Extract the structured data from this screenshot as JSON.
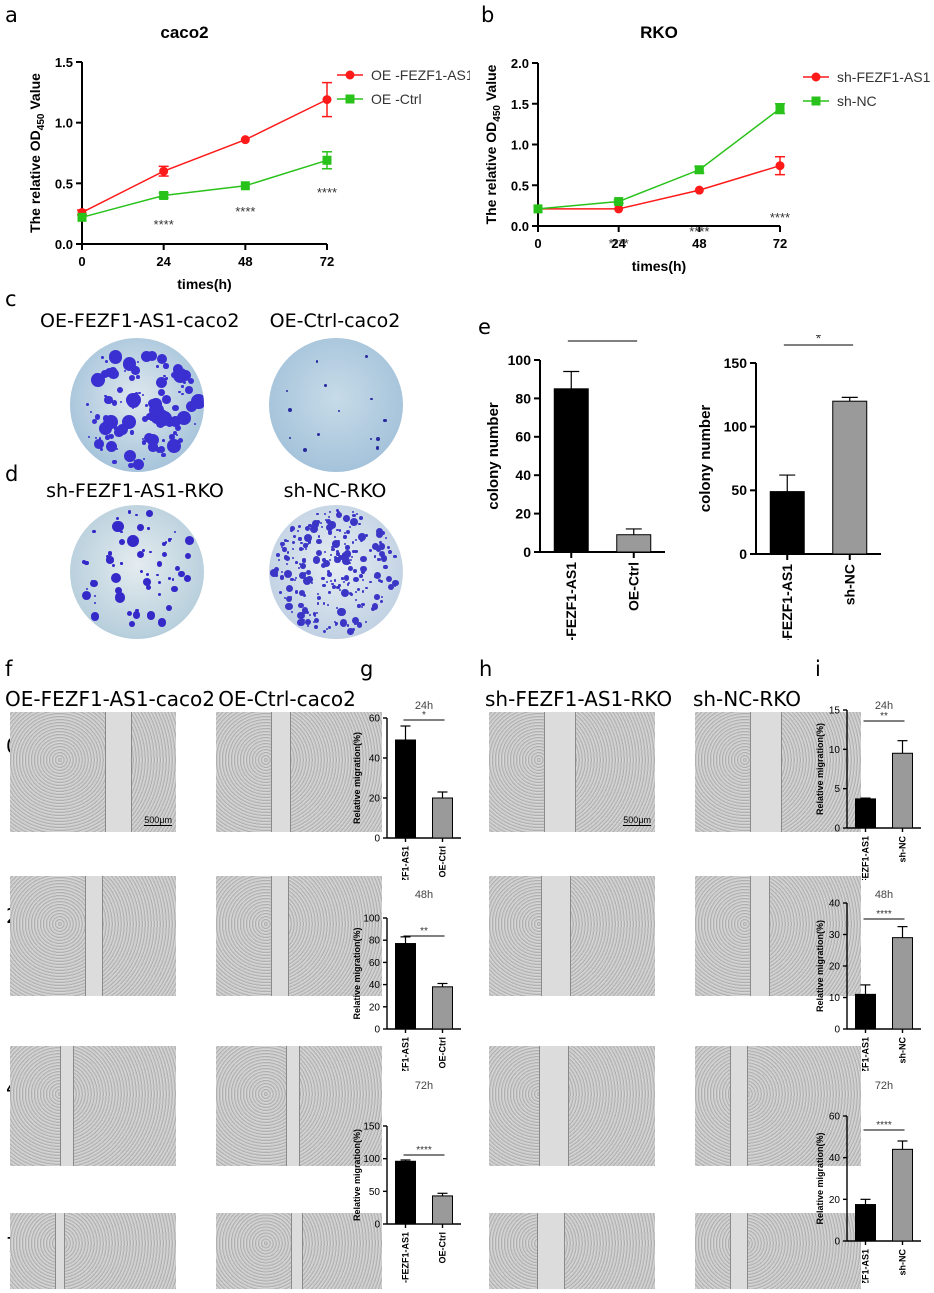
{
  "panel_letters": [
    "a",
    "b",
    "c",
    "d",
    "e",
    "f",
    "g",
    "h",
    "i"
  ],
  "chart_data": [
    {
      "id": "a",
      "type": "line",
      "title": "caco2",
      "xlabel": "times(h)",
      "ylabel_main": "The relative OD",
      "ylabel_sub": "450",
      "ylabel_tail": " Value",
      "x": [
        0,
        24,
        48,
        72
      ],
      "xticks": [
        "0",
        "24",
        "48",
        "72"
      ],
      "ylim": [
        0,
        1.5
      ],
      "yticks": [
        "0.0",
        "0.5",
        "1.0",
        "1.5"
      ],
      "series": [
        {
          "name": "OE -FEZF1-AS1",
          "values": [
            0.26,
            0.6,
            0.86,
            1.19
          ],
          "err": [
            0.02,
            0.04,
            0.01,
            0.14
          ],
          "color": "#ff1a1a",
          "marker": "circle"
        },
        {
          "name": "OE -Ctrl",
          "values": [
            0.22,
            0.4,
            0.48,
            0.69
          ],
          "err": [
            0.01,
            0.02,
            0.01,
            0.07
          ],
          "color": "#29c21b",
          "marker": "square"
        }
      ],
      "annotations": [
        {
          "x": 24,
          "text": "****"
        },
        {
          "x": 48,
          "text": "****"
        },
        {
          "x": 72,
          "text": "****"
        }
      ]
    },
    {
      "id": "b",
      "type": "line",
      "title": "RKO",
      "xlabel": "times(h)",
      "ylabel_main": "The relative OD",
      "ylabel_sub": "450",
      "ylabel_tail": " Value",
      "x": [
        0,
        24,
        48,
        72
      ],
      "xticks": [
        "0",
        "24",
        "48",
        "72"
      ],
      "ylim": [
        0,
        2.0
      ],
      "yticks": [
        "0.0",
        "0.5",
        "1.0",
        "1.5",
        "2.0"
      ],
      "series": [
        {
          "name": "sh-FEZF1-AS1",
          "values": [
            0.21,
            0.21,
            0.44,
            0.74
          ],
          "err": [
            0.01,
            0.01,
            0.01,
            0.11
          ],
          "color": "#ff1a1a",
          "marker": "circle"
        },
        {
          "name": "sh-NC",
          "values": [
            0.21,
            0.3,
            0.69,
            1.44
          ],
          "err": [
            0.01,
            0.02,
            0.04,
            0.06
          ],
          "color": "#29c21b",
          "marker": "square"
        }
      ],
      "annotations": [
        {
          "x": 24,
          "text": "****"
        },
        {
          "x": 48,
          "text": "****"
        },
        {
          "x": 72,
          "text": "****"
        }
      ]
    },
    {
      "id": "e1",
      "type": "bar",
      "ylabel": "colony number",
      "categories": [
        "OE-FEZF1-AS1",
        "OE-Ctrl"
      ],
      "values": [
        85,
        9
      ],
      "err": [
        9,
        3
      ],
      "colors": [
        "#000000",
        "#9a9a9a"
      ],
      "ylim": [
        0,
        100
      ],
      "yticks": [
        "0",
        "20",
        "40",
        "60",
        "80",
        "100"
      ],
      "sig": "**"
    },
    {
      "id": "e2",
      "type": "bar",
      "ylabel": "colony number",
      "categories": [
        "sh-FEZF1-AS1",
        "sh-NC"
      ],
      "values": [
        49,
        120
      ],
      "err": [
        13,
        3
      ],
      "colors": [
        "#000000",
        "#9a9a9a"
      ],
      "ylim": [
        0,
        150
      ],
      "yticks": [
        "0",
        "50",
        "100",
        "150"
      ],
      "sig": "*"
    },
    {
      "id": "g1",
      "type": "bar",
      "title": "24h",
      "ylabel": "Relative migration(%)",
      "categories": [
        "OE-FEZF1-AS1",
        "OE-Ctrl"
      ],
      "values": [
        49,
        20
      ],
      "err": [
        7,
        3
      ],
      "colors": [
        "#000000",
        "#9a9a9a"
      ],
      "ylim": [
        0,
        60
      ],
      "yticks": [
        "0",
        "20",
        "40",
        "60"
      ],
      "sig": "*"
    },
    {
      "id": "g2",
      "type": "bar",
      "title": "48h",
      "ylabel": "Relative migration(%)",
      "categories": [
        "OE-FEZF1-AS1",
        "OE-Ctrl"
      ],
      "values": [
        77,
        38
      ],
      "err": [
        6,
        3
      ],
      "colors": [
        "#000000",
        "#9a9a9a"
      ],
      "ylim": [
        0,
        100
      ],
      "yticks": [
        "0",
        "20",
        "40",
        "60",
        "80",
        "100"
      ],
      "sig": "**"
    },
    {
      "id": "g3",
      "type": "bar",
      "title": "72h",
      "ylabel": "Relative migration(%)",
      "categories": [
        "OE-FEZF1-AS1",
        "OE-Ctrl"
      ],
      "values": [
        96,
        43
      ],
      "err": [
        2,
        4
      ],
      "colors": [
        "#000000",
        "#9a9a9a"
      ],
      "ylim": [
        0,
        150
      ],
      "yticks": [
        "0",
        "50",
        "100",
        "150"
      ],
      "sig": "****"
    },
    {
      "id": "i1",
      "type": "bar",
      "title": "24h",
      "ylabel": "Relative migration(%)",
      "categories": [
        "sh-FEZF1-AS1",
        "sh-NC"
      ],
      "values": [
        3.7,
        9.5
      ],
      "err": [
        0.1,
        1.6
      ],
      "colors": [
        "#000000",
        "#9a9a9a"
      ],
      "ylim": [
        0,
        15
      ],
      "yticks": [
        "0",
        "5",
        "10",
        "15"
      ],
      "sig": "**"
    },
    {
      "id": "i2",
      "type": "bar",
      "title": "48h",
      "ylabel": "Relative migration(%)",
      "categories": [
        "sh-FEZF1-AS1",
        "sh-NC"
      ],
      "values": [
        11,
        29
      ],
      "err": [
        3,
        3.5
      ],
      "colors": [
        "#000000",
        "#9a9a9a"
      ],
      "ylim": [
        0,
        40
      ],
      "yticks": [
        "0",
        "10",
        "20",
        "30",
        "40"
      ],
      "sig": "****"
    },
    {
      "id": "i3",
      "type": "bar",
      "title": "72h",
      "ylabel": "Relative migration(%)",
      "categories": [
        "sh-FEZF1-AS1",
        "sh-NC"
      ],
      "values": [
        17.5,
        44
      ],
      "err": [
        2.5,
        4
      ],
      "colors": [
        "#000000",
        "#9a9a9a"
      ],
      "ylim": [
        0,
        60
      ],
      "yticks": [
        "0",
        "20",
        "40",
        "60"
      ],
      "sig": "****"
    }
  ],
  "colony_panels": {
    "c_labels": [
      "OE-FEZF1-AS1-caco2",
      "OE-Ctrl-caco2"
    ],
    "d_labels": [
      "sh-FEZF1-AS1-RKO",
      "sh-NC-RKO"
    ]
  },
  "wound_panels": {
    "f_labels": [
      "OE-FEZF1-AS1-caco2",
      "OE-Ctrl-caco2"
    ],
    "h_labels": [
      "sh-FEZF1-AS1-RKO",
      "sh-NC-RKO"
    ],
    "time_labels": [
      "0h",
      "24h",
      "48h",
      "72h"
    ],
    "scale_bar": "500μm"
  }
}
